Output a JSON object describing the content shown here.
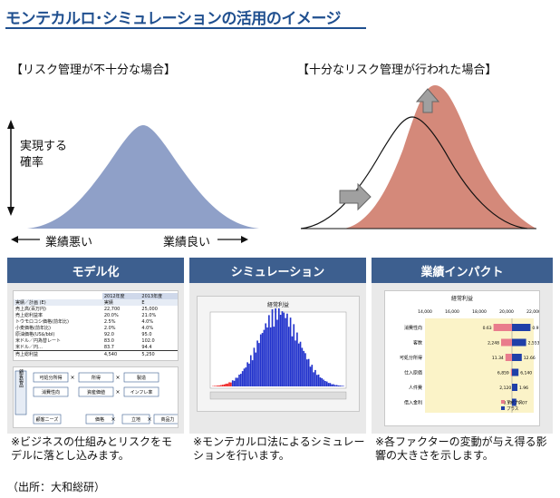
{
  "title": "モンテカルロ･シミュレーションの活用のイメージ",
  "left_chart": {
    "caption": "【リスク管理が不十分な場合】",
    "y_label_line1": "実現する",
    "y_label_line2": "確率",
    "x_left": "業績悪い",
    "x_right": "業績良い"
  },
  "right_chart": {
    "caption": "【十分なリスク管理が行われた場合】"
  },
  "panels": [
    {
      "header": "モデル化",
      "note": "※ビジネスの仕組みとリスクをモデルに落とし込みます。",
      "table": {
        "col_headers": [
          "2012年度",
          "2013年度"
        ],
        "sub_headers": [
          "実績／計画 (E)",
          "実績",
          "E"
        ],
        "rows": [
          [
            "売上高(百万円)",
            "22,700",
            "25,000"
          ],
          [
            "売上総利益率",
            "20.0%",
            "21.0%"
          ],
          [
            "トウモロコシ価格(前年比)",
            "2.5%",
            "4.0%"
          ],
          [
            "小麦価格(前年比)",
            "2.0%",
            "4.0%"
          ],
          [
            "原油価格(US$/bbl)",
            "92.0",
            "95.0"
          ],
          [
            "米ドル／円為替レート",
            "83.0",
            "102.0"
          ],
          [
            "米ドル／円…",
            "83.7",
            "94.4"
          ],
          [
            "売上総利益",
            "4,540",
            "5,250"
          ]
        ]
      },
      "flow": {
        "side_label": "顧客製品",
        "boxes": [
          "可処分所得",
          "所得",
          "製造",
          "消費性向",
          "資産価値",
          "インフレ率",
          "顧客ニーズ",
          "価格",
          "立地",
          "商品力"
        ],
        "ops": [
          "×",
          "×",
          "×",
          "×",
          "×"
        ]
      }
    },
    {
      "header": "シミュレーション",
      "note": "※モンテカルロ法によるシミュレーションを行います。",
      "sim_title": "経常利益"
    },
    {
      "header": "業績インパクト",
      "note": "※各ファクターの変動が与え得る影響の大きさを示します。",
      "tornado": {
        "title": "経常利益",
        "axis_ticks": [
          "14,000",
          "16,000",
          "18,000",
          "20,000",
          "22,000"
        ],
        "rows": [
          {
            "label": "消費性向",
            "low": "0.63",
            "high": "0.97",
            "lo": 0.63,
            "hi": 0.97
          },
          {
            "label": "客数",
            "low": "2,248",
            "high": "2,553",
            "lo": 0.7,
            "hi": 0.93
          },
          {
            "label": "可処分所得",
            "low": "11.34",
            "high": "12.66",
            "lo": 0.74,
            "hi": 0.89
          },
          {
            "label": "仕入原価",
            "low": "6,859",
            "high": "6,140",
            "lo": 0.79,
            "hi": 0.86
          },
          {
            "label": "人件費",
            "low": "2,120",
            "high": "1.96",
            "lo": 0.81,
            "hi": 0.85
          },
          {
            "label": "借入金利",
            "low": "0.10",
            "high": "0.07",
            "lo": 0.82,
            "hi": 0.84
          }
        ],
        "legend": [
          "マイナス",
          "プラス"
        ]
      }
    }
  ],
  "source": "（出所：大和総研）",
  "colors": {
    "title": "#1f4f8f",
    "header_bg": "#3d5f8f",
    "bell_left": "#8fa0c8",
    "bell_right": "#d4897a",
    "hist_bar": "#2233cc",
    "hist_tail": "#ee2222",
    "minus": "#e97c8c",
    "plus": "#1f3fa8"
  }
}
